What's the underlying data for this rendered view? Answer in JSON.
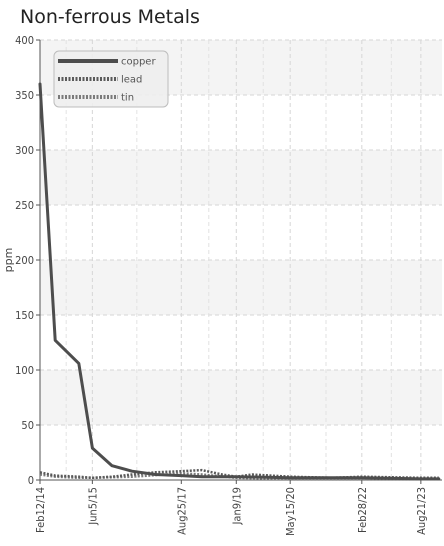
{
  "chart_data": {
    "type": "line",
    "title": "Non-ferrous Metals",
    "xlabel": "",
    "ylabel": "ppm",
    "ylim": [
      0,
      400
    ],
    "yticks": [
      0,
      50,
      100,
      150,
      200,
      250,
      300,
      350,
      400
    ],
    "xlim": [
      "2014-02-12",
      "2024-03-01"
    ],
    "xticks": [
      {
        "label": "Feb12/14",
        "date": "2014-02-12"
      },
      {
        "label": "Jun5/15",
        "date": "2015-06-05"
      },
      {
        "label": "Aug25/17",
        "date": "2017-08-25"
      },
      {
        "label": "Jan9/19",
        "date": "2019-01-09"
      },
      {
        "label": "May15/20",
        "date": "2020-05-15"
      },
      {
        "label": "Feb28/22",
        "date": "2022-02-28"
      },
      {
        "label": "Aug21/23",
        "date": "2023-08-21"
      }
    ],
    "grid": true,
    "legend": "top-left",
    "series": [
      {
        "name": "copper",
        "color": "#4d4d4d",
        "style": "solid",
        "points": [
          [
            "2014-02-12",
            360
          ],
          [
            "2014-07-01",
            127
          ],
          [
            "2015-02-01",
            106
          ],
          [
            "2015-06-05",
            29
          ],
          [
            "2015-12-01",
            13
          ],
          [
            "2016-06-01",
            8
          ],
          [
            "2017-01-01",
            5
          ],
          [
            "2017-08-25",
            4
          ],
          [
            "2018-03-01",
            3
          ],
          [
            "2019-01-09",
            3
          ],
          [
            "2020-05-15",
            2
          ],
          [
            "2021-06-01",
            2
          ],
          [
            "2022-02-28",
            2
          ],
          [
            "2023-08-21",
            1
          ],
          [
            "2024-02-01",
            1
          ]
        ]
      },
      {
        "name": "lead",
        "color": "#5a5a5a",
        "style": "dotted",
        "points": [
          [
            "2014-02-12",
            7
          ],
          [
            "2014-07-01",
            4
          ],
          [
            "2015-02-01",
            3
          ],
          [
            "2015-06-05",
            2
          ],
          [
            "2015-12-01",
            3
          ],
          [
            "2016-06-01",
            5
          ],
          [
            "2017-01-01",
            7
          ],
          [
            "2017-08-25",
            8
          ],
          [
            "2018-03-01",
            9
          ],
          [
            "2018-09-01",
            5
          ],
          [
            "2019-01-09",
            3
          ],
          [
            "2019-06-01",
            5
          ],
          [
            "2020-05-15",
            3
          ],
          [
            "2021-06-01",
            2
          ],
          [
            "2022-02-28",
            3
          ],
          [
            "2023-08-21",
            2
          ],
          [
            "2024-02-01",
            2
          ]
        ]
      },
      {
        "name": "tin",
        "color": "#7a7a7a",
        "style": "dotted",
        "points": [
          [
            "2014-02-12",
            5
          ],
          [
            "2014-07-01",
            3
          ],
          [
            "2015-02-01",
            2
          ],
          [
            "2015-06-05",
            2
          ],
          [
            "2016-06-01",
            3
          ],
          [
            "2017-08-25",
            6
          ],
          [
            "2018-03-01",
            5
          ],
          [
            "2019-01-09",
            2
          ],
          [
            "2020-05-15",
            1
          ],
          [
            "2022-02-28",
            1
          ],
          [
            "2023-08-21",
            1
          ],
          [
            "2024-02-01",
            1
          ]
        ]
      }
    ]
  }
}
